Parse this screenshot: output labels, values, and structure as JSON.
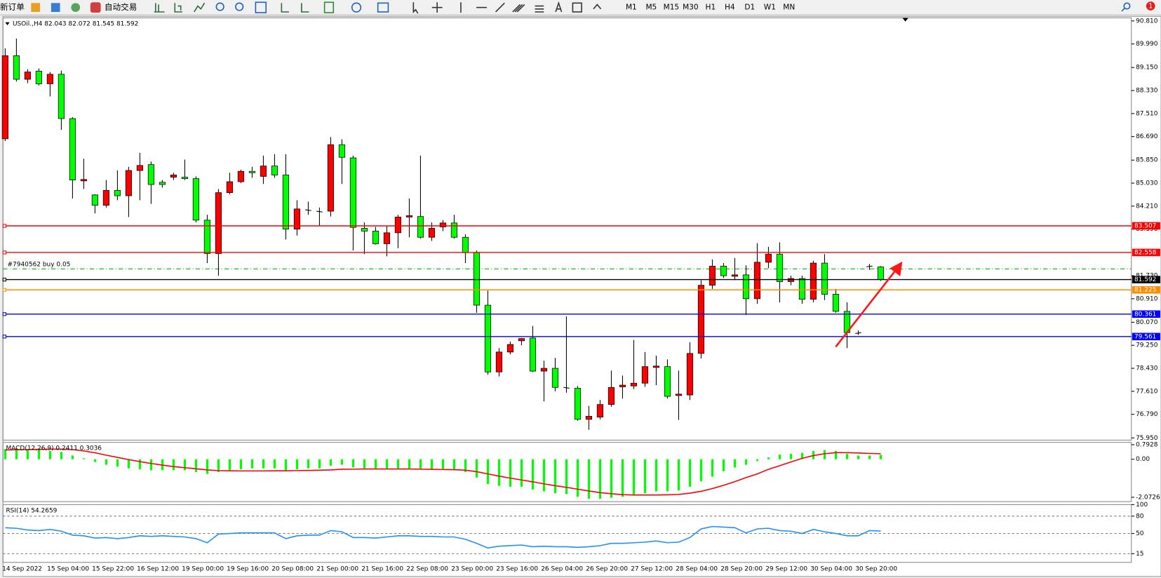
{
  "toolbar": {
    "new_order": "新订单",
    "auto_trading": "自动交易",
    "timeframes": [
      "M1",
      "M5",
      "M15",
      "M30",
      "H1",
      "H4",
      "D1",
      "W1",
      "MN"
    ],
    "badge": "1"
  },
  "chart_data": [
    {
      "type": "candlestick",
      "title": "USOil.,H4  82.043 82.072 81.545 81.592",
      "categories": [
        "14 Sep 2022",
        null,
        null,
        null,
        "15 Sep 04:00",
        null,
        null,
        null,
        "15 Sep 22:00",
        null,
        null,
        null,
        "16 Sep 12:00",
        null,
        null,
        null,
        "19 Sep 00:00",
        null,
        null,
        null,
        "19 Sep 16:00",
        null,
        null,
        null,
        "20 Sep 08:00",
        null,
        null,
        null,
        "21 Sep 00:00",
        null,
        null,
        null,
        "21 Sep 16:00",
        null,
        null,
        null,
        "22 Sep 08:00",
        null,
        null,
        null,
        "23 Sep 00:00",
        null,
        null,
        null,
        "23 Sep 16:00",
        null,
        null,
        null,
        "26 Sep 04:00",
        null,
        null,
        null,
        "26 Sep 20:00",
        null,
        null,
        null,
        "27 Sep 12:00",
        null,
        null,
        null,
        "28 Sep 04:00",
        null,
        null,
        null,
        "28 Sep 20:00",
        null,
        null,
        null,
        "29 Sep 12:00",
        null,
        null,
        null,
        "30 Sep 04:00",
        null,
        null,
        null,
        "30 Sep 20:00",
        null,
        null
      ],
      "open": [
        86.61,
        89.57,
        88.73,
        89.02,
        88.57,
        88.91,
        87.33,
        85.11,
        84.61,
        84.24,
        84.77,
        84.58,
        85.48,
        85.69,
        85.06,
        85.24,
        85.24,
        85.19,
        83.71,
        82.52,
        84.69,
        85.08,
        85.45,
        85.27,
        85.64,
        85.32,
        83.39,
        84.08,
        84.03,
        84.03,
        86.4,
        85.93,
        83.42,
        83.32,
        82.87,
        83.26,
        83.82,
        83.84,
        83.1,
        83.47,
        83.61,
        83.1,
        82.55,
        80.68,
        78.3,
        79.01,
        79.41,
        79.51,
        78.33,
        78.43,
        77.75,
        77.72,
        76.61,
        76.69,
        77.14,
        77.77,
        77.8,
        77.9,
        78.46,
        78.49,
        77.46,
        77.48,
        78.96,
        81.39,
        82.07,
        81.71,
        81.76,
        80.91,
        82.21,
        82.5,
        81.52,
        81.63,
        80.89,
        82.18,
        81.07,
        80.46,
        79.67,
        82.05,
        82.043
      ],
      "high": [
        89.83,
        90.18,
        89.09,
        89.12,
        88.99,
        89.04,
        87.38,
        85.9,
        84.63,
        85.14,
        85.48,
        85.61,
        86.11,
        85.8,
        85.14,
        85.4,
        85.87,
        85.27,
        83.9,
        84.82,
        85.4,
        85.51,
        85.61,
        86.01,
        86.06,
        86.06,
        84.42,
        84.37,
        84.16,
        86.67,
        86.59,
        86.01,
        83.63,
        83.47,
        83.5,
        83.9,
        84.48,
        86.01,
        83.63,
        83.71,
        83.9,
        83.21,
        82.63,
        81.2,
        79.15,
        79.38,
        79.51,
        79.94,
        78.7,
        78.8,
        80.28,
        77.8,
        77.09,
        77.3,
        78.35,
        78.17,
        79.44,
        79.01,
        78.88,
        78.75,
        78.35,
        79.36,
        81.57,
        82.31,
        82.18,
        82.36,
        82.1,
        82.89,
        82.76,
        82.92,
        81.73,
        81.73,
        82.26,
        82.5,
        81.26,
        80.78,
        79.78,
        82.15,
        82.072
      ],
      "low": [
        86.53,
        88.65,
        88.59,
        88.51,
        88.12,
        86.93,
        84.48,
        84.82,
        83.95,
        84.16,
        84.42,
        83.82,
        84.42,
        84.29,
        84.87,
        85.14,
        85.14,
        83.63,
        82.18,
        81.73,
        84.63,
        85.03,
        85.22,
        85.0,
        85.22,
        83.02,
        83.16,
        83.9,
        83.5,
        83.84,
        85.0,
        82.63,
        82.5,
        82.84,
        82.42,
        82.71,
        83.1,
        83.05,
        82.97,
        83.32,
        83.05,
        82.18,
        80.41,
        78.2,
        78.14,
        78.93,
        79.25,
        78.3,
        77.25,
        77.61,
        77.56,
        76.56,
        76.24,
        76.61,
        77.06,
        77.35,
        77.69,
        77.77,
        77.83,
        77.35,
        76.59,
        77.3,
        78.78,
        81.26,
        81.65,
        81.57,
        80.33,
        80.73,
        82.0,
        80.78,
        81.39,
        80.73,
        80.78,
        80.86,
        80.41,
        79.15,
        79.62,
        81.94,
        81.545
      ],
      "close": [
        89.57,
        88.73,
        88.99,
        88.57,
        88.91,
        87.33,
        85.14,
        85.16,
        84.24,
        84.77,
        84.58,
        85.48,
        85.66,
        84.98,
        84.98,
        85.32,
        85.19,
        83.71,
        82.52,
        84.69,
        85.08,
        85.45,
        85.4,
        85.64,
        85.32,
        83.39,
        84.11,
        84.05,
        84.0,
        86.4,
        85.95,
        83.45,
        83.32,
        82.87,
        83.26,
        83.82,
        83.87,
        83.1,
        83.42,
        83.61,
        83.1,
        82.55,
        80.68,
        78.3,
        79.01,
        79.28,
        79.49,
        78.33,
        78.43,
        77.75,
        77.72,
        76.61,
        76.72,
        77.14,
        77.75,
        77.83,
        77.9,
        78.49,
        78.51,
        77.43,
        77.51,
        78.96,
        81.39,
        82.07,
        81.73,
        81.76,
        80.91,
        82.21,
        82.5,
        81.52,
        81.63,
        80.89,
        82.18,
        81.07,
        80.46,
        79.7,
        79.7,
        82.07,
        81.592
      ],
      "up_color": "#ff0000",
      "down_color": "#00ff00",
      "ylim": [
        75.87,
        90.92
      ],
      "yticks": [
        {
          "value": 90.81,
          "label": "90.810"
        },
        {
          "value": 89.99,
          "label": "89.990"
        },
        {
          "value": 89.15,
          "label": "89.150"
        },
        {
          "value": 88.33,
          "label": "88.330"
        },
        {
          "value": 87.51,
          "label": "87.510"
        },
        {
          "value": 86.69,
          "label": "86.690"
        },
        {
          "value": 85.85,
          "label": "85.850"
        },
        {
          "value": 85.03,
          "label": "85.030"
        },
        {
          "value": 84.21,
          "label": "84.210"
        },
        {
          "value": 83.39,
          "label": "83.390"
        },
        {
          "value": 81.73,
          "label": "81.730"
        },
        {
          "value": 80.91,
          "label": "80.910"
        },
        {
          "value": 80.07,
          "label": "80.070"
        },
        {
          "value": 79.25,
          "label": "79.250"
        },
        {
          "value": 78.43,
          "label": "78.430"
        },
        {
          "value": 77.61,
          "label": "77.610"
        },
        {
          "value": 76.79,
          "label": "76.790"
        },
        {
          "value": 75.95,
          "label": "75.950"
        }
      ],
      "levels": [
        {
          "value": 83.507,
          "label": "83.507",
          "color": "#ff0000"
        },
        {
          "value": 82.558,
          "label": "82.558",
          "color": "#ff0000"
        },
        {
          "value": 81.592,
          "label": "81.592",
          "color": "#000000"
        },
        {
          "value": 81.225,
          "label": "81.225",
          "color": "#ff8c00"
        },
        {
          "value": 80.361,
          "label": "80.361",
          "color": "#0000ff"
        },
        {
          "value": 79.561,
          "label": "79.561",
          "color": "#0000ff"
        }
      ],
      "order": {
        "text": "#7940562 buy 0.05",
        "value": 81.97,
        "color": "#00c000"
      }
    },
    {
      "type": "macd",
      "title": "MACD(12,26,9) 0.2411 0.3036",
      "histogram": [
        0.55,
        0.6,
        0.55,
        0.5,
        0.45,
        0.4,
        0.2,
        0.05,
        -0.15,
        -0.3,
        -0.4,
        -0.5,
        -0.55,
        -0.6,
        -0.6,
        -0.6,
        -0.6,
        -0.7,
        -0.8,
        -0.7,
        -0.6,
        -0.55,
        -0.5,
        -0.5,
        -0.5,
        -0.6,
        -0.55,
        -0.5,
        -0.5,
        -0.35,
        -0.3,
        -0.45,
        -0.5,
        -0.55,
        -0.55,
        -0.5,
        -0.5,
        -0.55,
        -0.55,
        -0.55,
        -0.6,
        -0.7,
        -1.0,
        -1.35,
        -1.45,
        -1.5,
        -1.5,
        -1.65,
        -1.75,
        -1.85,
        -1.9,
        -2.05,
        -2.15,
        -2.15,
        -2.1,
        -2.05,
        -1.95,
        -1.85,
        -1.75,
        -1.75,
        -1.7,
        -1.5,
        -1.2,
        -0.95,
        -0.65,
        -0.45,
        -0.3,
        -0.1,
        0.1,
        0.25,
        0.3,
        0.35,
        0.45,
        0.5,
        0.45,
        0.3,
        0.2,
        0.2,
        0.24
      ],
      "signal": [
        0.5,
        0.52,
        0.53,
        0.54,
        0.55,
        0.55,
        0.53,
        0.45,
        0.35,
        0.22,
        0.1,
        -0.02,
        -0.13,
        -0.23,
        -0.32,
        -0.4,
        -0.46,
        -0.52,
        -0.58,
        -0.62,
        -0.63,
        -0.64,
        -0.64,
        -0.64,
        -0.63,
        -0.63,
        -0.62,
        -0.61,
        -0.6,
        -0.58,
        -0.55,
        -0.54,
        -0.53,
        -0.53,
        -0.53,
        -0.53,
        -0.53,
        -0.54,
        -0.55,
        -0.56,
        -0.57,
        -0.6,
        -0.68,
        -0.8,
        -0.92,
        -1.03,
        -1.13,
        -1.23,
        -1.34,
        -1.44,
        -1.53,
        -1.63,
        -1.73,
        -1.82,
        -1.88,
        -1.93,
        -1.95,
        -1.95,
        -1.95,
        -1.94,
        -1.92,
        -1.85,
        -1.75,
        -1.6,
        -1.42,
        -1.22,
        -1.0,
        -0.8,
        -0.55,
        -0.35,
        -0.15,
        0.05,
        0.2,
        0.3,
        0.36,
        0.36,
        0.34,
        0.32,
        0.3
      ],
      "histogram_color": "#00ff00",
      "signal_color": "#ff0000",
      "ylim": [
        -2.31,
        0.92
      ],
      "yticks": [
        {
          "value": 0.7928,
          "label": "0.7928"
        },
        {
          "value": 0,
          "label": "0.00"
        },
        {
          "value": -2.0726,
          "label": "-2.0726"
        }
      ]
    },
    {
      "type": "rsi",
      "title": "RSI(14) 54.2659",
      "values": [
        60,
        59,
        56,
        55,
        57,
        54,
        47,
        46,
        42,
        43,
        41,
        43,
        46,
        45,
        46,
        45,
        44,
        41,
        34,
        49,
        50,
        51,
        51,
        51,
        51,
        41,
        46,
        47,
        47,
        55,
        53,
        43,
        43,
        42,
        44,
        46,
        46,
        45,
        45,
        44,
        44,
        40,
        33,
        25,
        28,
        29,
        30,
        27,
        28,
        27,
        27,
        26,
        27,
        29,
        33,
        33,
        34,
        35,
        37,
        34,
        35,
        43,
        58,
        62,
        61,
        60,
        51,
        58,
        59,
        55,
        54,
        50,
        57,
        53,
        50,
        46,
        46,
        55,
        54.27
      ],
      "color": "#1e90ff",
      "ylim": [
        0,
        100
      ],
      "yticks": [
        100,
        80,
        50,
        15
      ],
      "levels": [
        80,
        50,
        15
      ]
    }
  ]
}
